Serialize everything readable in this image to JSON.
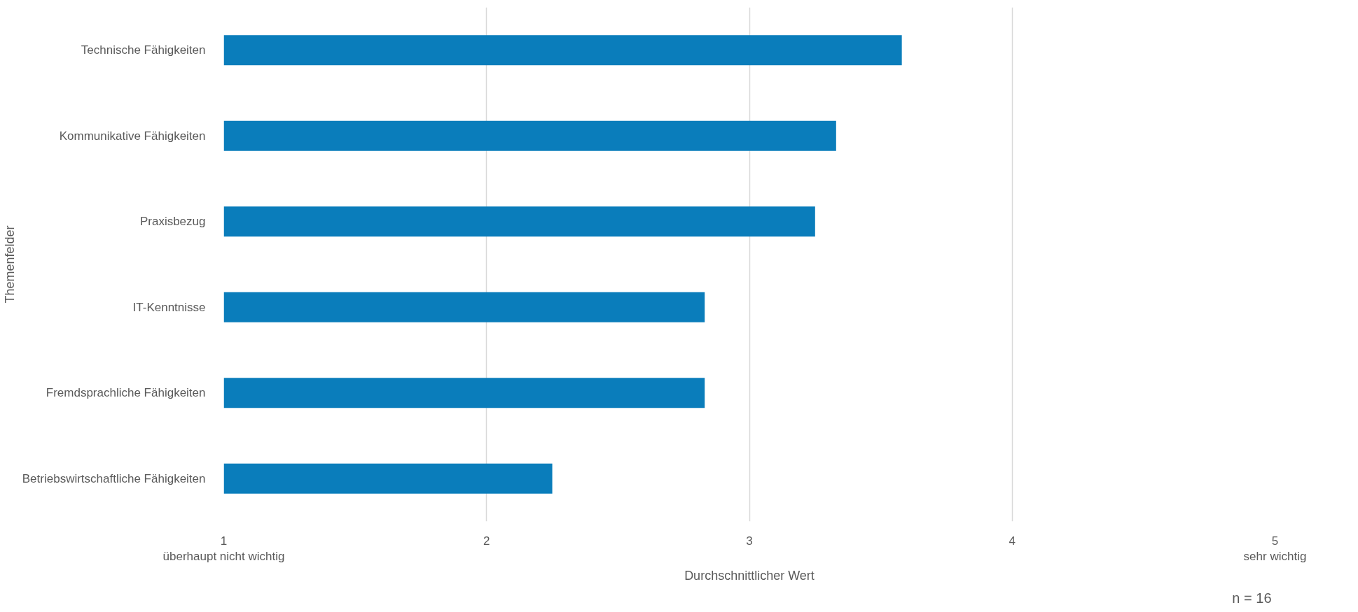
{
  "chart_data": {
    "type": "bar",
    "orientation": "horizontal",
    "xlabel": "Durchschnittlicher Wert",
    "ylabel": "Themenfelder",
    "categories": [
      "Technische Fähigkeiten",
      "Kommunikative Fähigkeiten",
      "Praxisbezug",
      "IT-Kenntnisse",
      "Fremdsprachliche Fähigkeiten",
      "Betriebswirtschaftliche Fähigkeiten"
    ],
    "values": [
      3.58,
      3.33,
      3.25,
      2.83,
      2.83,
      2.25
    ],
    "color": "#0a7dbb",
    "xlim": [
      1,
      5
    ],
    "xticks": [
      {
        "value": 1,
        "label": "1\nüberhaupt nicht wichtig"
      },
      2,
      3,
      4,
      {
        "value": 5,
        "label": "5\nsehr wichtig"
      }
    ],
    "grid": "x",
    "annotations": [
      "n = 16"
    ]
  }
}
